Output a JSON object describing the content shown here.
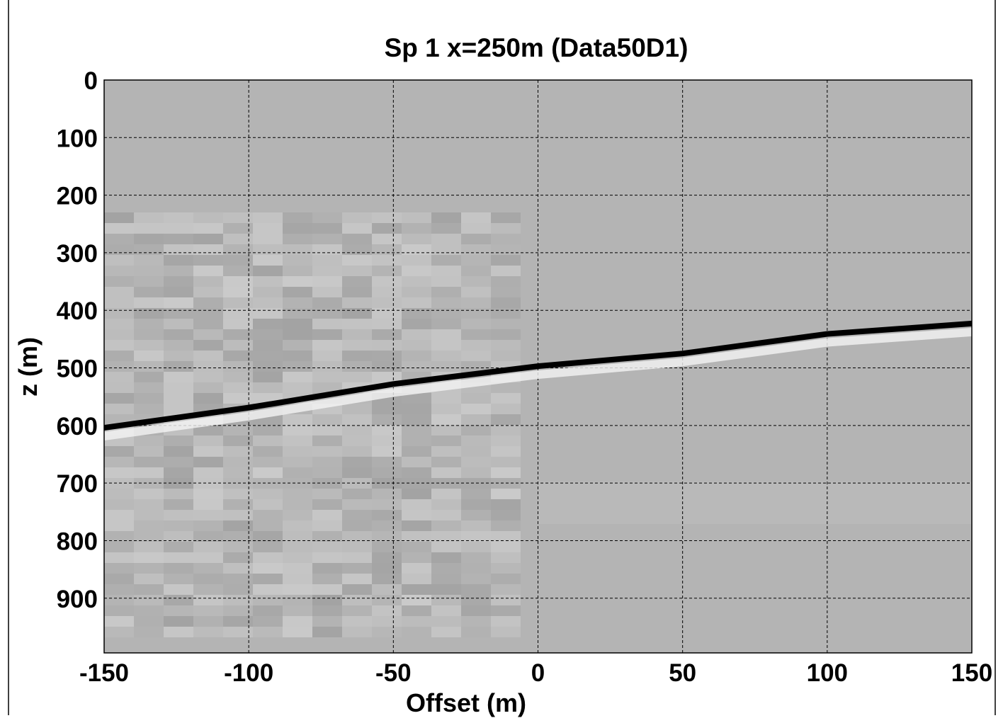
{
  "chart_data": {
    "type": "line",
    "title": "Sp 1 x=250m (Data50D1)",
    "x_label": "Offset (m)",
    "y_label": "z (m)",
    "x": [
      -150,
      -100,
      -50,
      0,
      50,
      100,
      150
    ],
    "values": [
      604,
      569,
      528,
      497,
      475,
      441,
      423
    ],
    "color": "#000000",
    "background": "#b4b4b4",
    "xlim": [
      -150,
      150
    ],
    "xticks": [
      -150,
      -100,
      -50,
      0,
      50,
      100,
      150
    ],
    "ylim": [
      0,
      995
    ],
    "yticks": [
      0,
      100,
      200,
      300,
      400,
      500,
      600,
      700,
      800,
      900
    ],
    "y_reversed": true,
    "grid": true
  }
}
